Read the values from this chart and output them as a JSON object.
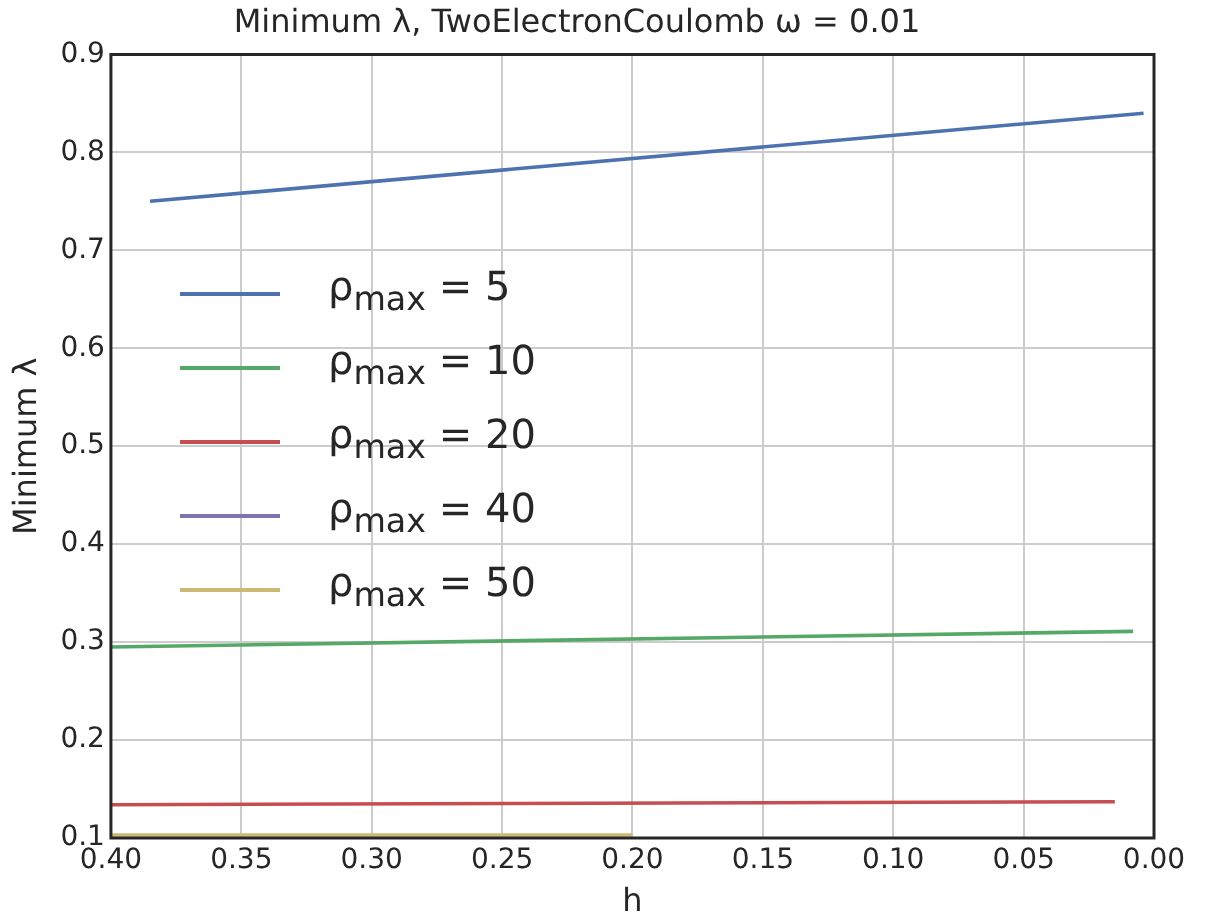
{
  "chart_data": {
    "type": "line",
    "title": "Minimum λ, TwoElectronCoulomb ω = 0.01",
    "xlabel": "h",
    "ylabel": "Minimum λ",
    "xlim": [
      0.4,
      0
    ],
    "ylim": [
      0.1,
      0.9
    ],
    "xticks": [
      {
        "value": 0.4,
        "label": "0.40"
      },
      {
        "value": 0.35,
        "label": "0.35"
      },
      {
        "value": 0.3,
        "label": "0.30"
      },
      {
        "value": 0.25,
        "label": "0.25"
      },
      {
        "value": 0.2,
        "label": "0.20"
      },
      {
        "value": 0.15,
        "label": "0.15"
      },
      {
        "value": 0.1,
        "label": "0.10"
      },
      {
        "value": 0.05,
        "label": "0.05"
      },
      {
        "value": 0,
        "label": "0.00"
      }
    ],
    "yticks": [
      0.1,
      0.2,
      0.3,
      0.4,
      0.5,
      0.6,
      0.7,
      0.8,
      0.9
    ],
    "grid": true,
    "legend": "left",
    "marker": "none",
    "line_style": "solid",
    "series": [
      {
        "name": "ρ$_{max}$ = 5",
        "color": "#4c72b0",
        "x": [
          0.385,
          0.004
        ],
        "values": [
          0.75,
          0.84
        ]
      },
      {
        "name": "ρ$_{max}$ = 10",
        "color": "#55a868",
        "x": [
          0.4,
          0.008
        ],
        "values": [
          0.295,
          0.311
        ]
      },
      {
        "name": "ρ$_{max}$ = 20",
        "color": "#c44e52",
        "x": [
          0.4,
          0.015
        ],
        "values": [
          0.134,
          0.137
        ]
      },
      {
        "name": "ρ$_{max}$ = 40",
        "color": "#8172b2"
      },
      {
        "name": "ρ$_{max}$ = 50",
        "color": "#ccb974",
        "x": [
          0.4,
          0.2
        ],
        "values": [
          0.103,
          0.103
        ]
      }
    ]
  }
}
